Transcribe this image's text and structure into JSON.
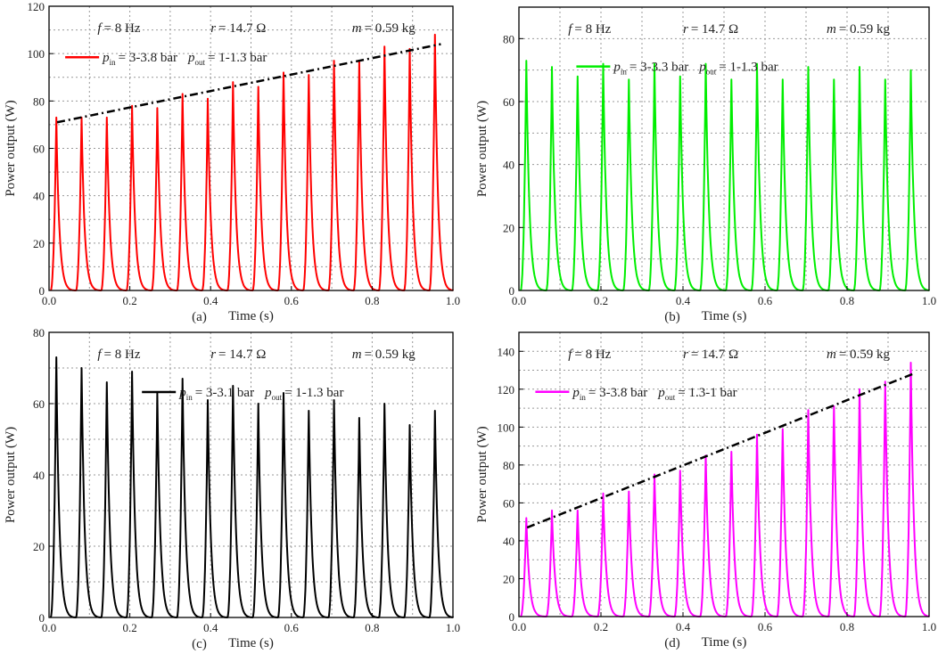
{
  "chart_data": [
    {
      "type": "line",
      "panel": "(a)",
      "xlabel": "Time (s)",
      "ylabel": "Power output (W)",
      "xlim": [
        0,
        1.0
      ],
      "ylim": [
        0,
        120
      ],
      "xticks": [
        "0.0",
        "0.2",
        "0.4",
        "0.6",
        "0.8",
        "1.0"
      ],
      "yticks": [
        "0",
        "20",
        "40",
        "60",
        "80",
        "100",
        "120"
      ],
      "ytick_step": 20,
      "grid": true,
      "color": "#ff0000",
      "annotations": [
        {
          "symbol": "f",
          "value": "= 8 Hz"
        },
        {
          "symbol": "r",
          "value": "= 14.7 Ω"
        },
        {
          "symbol": "m",
          "value": "= 0.59 kg"
        }
      ],
      "legend": {
        "p1": "p",
        "sub1": "in",
        "val1": "= 3-3.8 bar",
        "p2": "p",
        "sub2": "out",
        "val2": "= 1-1.3 bar"
      },
      "first_peak_s": 0.018,
      "peak_period_s": 0.0625,
      "peaks": [
        73,
        73,
        73,
        78,
        77,
        83,
        81,
        88,
        86,
        92,
        91,
        97,
        97,
        103,
        102,
        108
      ],
      "trend": {
        "x": [
          0.02,
          0.97
        ],
        "y": [
          71,
          104
        ]
      }
    },
    {
      "type": "line",
      "panel": "(b)",
      "xlabel": "Time (s)",
      "ylabel": "Power output (W)",
      "xlim": [
        0,
        1.0
      ],
      "ylim": [
        0,
        90
      ],
      "xticks": [
        "0.0",
        "0.2",
        "0.4",
        "0.6",
        "0.8",
        "1.0"
      ],
      "yticks": [
        "0",
        "20",
        "40",
        "60",
        "80"
      ],
      "ytick_step": 20,
      "grid": true,
      "color": "#00ee00",
      "annotations": [
        {
          "symbol": "f",
          "value": "= 8 Hz"
        },
        {
          "symbol": "r",
          "value": "= 14.7 Ω"
        },
        {
          "symbol": "m",
          "value": "= 0.59 kg"
        }
      ],
      "legend": {
        "p1": "p",
        "sub1": "in",
        "val1": "= 3-3.3 bar",
        "p2": "p",
        "sub2": "out",
        "val2": "= 1-1.3 bar"
      },
      "first_peak_s": 0.018,
      "peak_period_s": 0.0625,
      "peaks": [
        73,
        71,
        68,
        72,
        67,
        72,
        68,
        72,
        67,
        72,
        67,
        71,
        67,
        71,
        67,
        70
      ],
      "trend": null
    },
    {
      "type": "line",
      "panel": "(c)",
      "xlabel": "Time (s)",
      "ylabel": "Power output (W)",
      "xlim": [
        0,
        1.0
      ],
      "ylim": [
        0,
        80
      ],
      "xticks": [
        "0.0",
        "0.2",
        "0.4",
        "0.6",
        "0.8",
        "1.0"
      ],
      "yticks": [
        "0",
        "20",
        "40",
        "60",
        "80"
      ],
      "ytick_step": 20,
      "grid": true,
      "color": "#000000",
      "annotations": [
        {
          "symbol": "f",
          "value": "= 8 Hz"
        },
        {
          "symbol": "r",
          "value": "= 14.7 Ω"
        },
        {
          "symbol": "m",
          "value": "= 0.59 kg"
        }
      ],
      "legend": {
        "p1": "p",
        "sub1": "in",
        "val1": "= 3-3.1 bar",
        "p2": "p",
        "sub2": "out",
        "val2": "= 1-1.3 bar"
      },
      "first_peak_s": 0.018,
      "peak_period_s": 0.0625,
      "peaks": [
        73,
        70,
        66,
        69,
        63,
        67,
        61,
        65,
        60,
        63,
        58,
        61,
        56,
        60,
        54,
        58
      ],
      "trend": null
    },
    {
      "type": "line",
      "panel": "(d)",
      "xlabel": "Time (s)",
      "ylabel": "Power output (W)",
      "xlim": [
        0,
        1.0
      ],
      "ylim": [
        0,
        150
      ],
      "xticks": [
        "0.0",
        "0.2",
        "0.4",
        "0.6",
        "0.8",
        "1.0"
      ],
      "yticks": [
        "0",
        "20",
        "40",
        "60",
        "80",
        "100",
        "120",
        "140"
      ],
      "ytick_step": 20,
      "grid": true,
      "color": "#ff00ff",
      "annotations": [
        {
          "symbol": "f",
          "value": "= 8 Hz"
        },
        {
          "symbol": "r",
          "value": "= 14.7 Ω"
        },
        {
          "symbol": "m",
          "value": "= 0.59 kg"
        }
      ],
      "legend": {
        "p1": "p",
        "sub1": "in",
        "val1": "= 3-3.8 bar",
        "p2": "p",
        "sub2": "out",
        "val2": "= 1.3-1 bar"
      },
      "first_peak_s": 0.018,
      "peak_period_s": 0.0625,
      "peaks": [
        52,
        56,
        56,
        65,
        66,
        75,
        77,
        85,
        87,
        96,
        99,
        109,
        111,
        120,
        124,
        134
      ],
      "trend": {
        "x": [
          0.02,
          0.96
        ],
        "y": [
          47,
          128
        ]
      }
    }
  ]
}
